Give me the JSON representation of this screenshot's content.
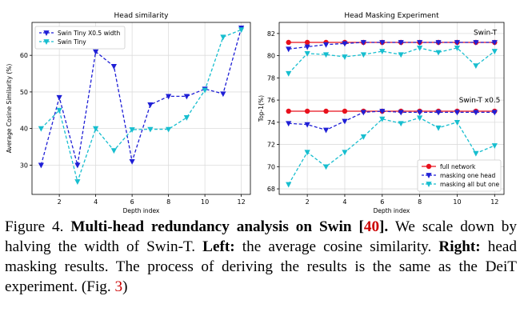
{
  "chart_data": [
    {
      "type": "line",
      "title": "Head similarity",
      "xlabel": "Depth index",
      "ylabel": "Average Cosine Similarity (%)",
      "xlim": [
        0.5,
        12.5
      ],
      "ylim": [
        22,
        69
      ],
      "xticks": [
        2,
        4,
        6,
        8,
        10,
        12
      ],
      "yticks": [
        30,
        40,
        50,
        60
      ],
      "grid": true,
      "legend": "top-left",
      "x": [
        1,
        2,
        3,
        4,
        5,
        6,
        7,
        8,
        9,
        10,
        11,
        12
      ],
      "series": [
        {
          "name": "Swin Tiny X0.5 width",
          "color": "#1f1fd6",
          "marker": "triangle-down",
          "values": [
            30,
            48.5,
            30,
            61,
            57,
            31,
            46.5,
            48.8,
            48.8,
            50.8,
            49.5,
            67.5
          ]
        },
        {
          "name": "Swin Tiny",
          "color": "#17becf",
          "marker": "triangle-down",
          "values": [
            40,
            45,
            25.5,
            40,
            34,
            39.7,
            39.8,
            39.8,
            43,
            50.5,
            65,
            67
          ]
        }
      ]
    },
    {
      "type": "line",
      "title": "Head Masking Experiment",
      "xlabel": "Depth index",
      "ylabel": "Top-1(%)",
      "xlim": [
        0.5,
        12.5
      ],
      "ylim": [
        67.5,
        83
      ],
      "xticks": [
        2,
        4,
        6,
        8,
        10,
        12
      ],
      "yticks": [
        68,
        70,
        72,
        74,
        76,
        78,
        80,
        82
      ],
      "grid": true,
      "legend": "bottom-right",
      "annotations": [
        {
          "text": "Swin-T",
          "x": 11.5,
          "y": 81.9
        },
        {
          "text": "Swin-T x0.5",
          "x": 11.2,
          "y": 75.8
        }
      ],
      "x": [
        1,
        2,
        3,
        4,
        5,
        6,
        7,
        8,
        9,
        10,
        11,
        12
      ],
      "series": [
        {
          "name": "full network",
          "color": "#e8101c",
          "marker": "circle",
          "group": "Swin-T",
          "values": [
            81.2,
            81.2,
            81.2,
            81.2,
            81.2,
            81.2,
            81.2,
            81.2,
            81.2,
            81.2,
            81.2,
            81.2
          ]
        },
        {
          "name": "masking one head",
          "color": "#1f1fd6",
          "marker": "triangle-down",
          "group": "Swin-T",
          "values": [
            80.6,
            80.8,
            81,
            81.1,
            81.2,
            81.2,
            81.2,
            81.2,
            81.2,
            81.2,
            81.2,
            81.2
          ]
        },
        {
          "name": "masking all but one",
          "color": "#17becf",
          "marker": "triangle-down",
          "group": "Swin-T",
          "values": [
            78.4,
            80.2,
            80.1,
            79.9,
            80.1,
            80.4,
            80.1,
            80.7,
            80.3,
            80.7,
            79.1,
            80.4
          ]
        },
        {
          "name": "full network",
          "color": "#e8101c",
          "marker": "circle",
          "group": "Swin-T x0.5",
          "values": [
            75,
            75,
            75,
            75,
            75,
            75,
            75,
            75,
            75,
            75,
            75,
            75
          ]
        },
        {
          "name": "masking one head",
          "color": "#1f1fd6",
          "marker": "triangle-down",
          "group": "Swin-T x0.5",
          "values": [
            73.9,
            73.8,
            73.3,
            74.1,
            74.9,
            75,
            74.9,
            74.9,
            74.9,
            74.9,
            74.9,
            74.9
          ]
        },
        {
          "name": "masking all but one",
          "color": "#17becf",
          "marker": "triangle-down",
          "group": "Swin-T x0.5",
          "values": [
            68.4,
            71.3,
            70,
            71.3,
            72.7,
            74.3,
            73.9,
            74.4,
            73.5,
            74,
            71.2,
            71.9
          ]
        }
      ]
    }
  ],
  "caption": {
    "label": "Figure 4. ",
    "bold_title": "Multi-head redundancy analysis on Swin [",
    "cite1": "40",
    "bold_title_end": "].",
    "text1": " We scale down by halving the width of Swin-T. ",
    "left_label": "Left:",
    "text2": " the average cosine similarity. ",
    "right_label": "Right:",
    "text3": " head masking results. The process of deriving the results is the same as the DeiT experiment. (Fig. ",
    "cite2": "3",
    "text4": ")"
  }
}
